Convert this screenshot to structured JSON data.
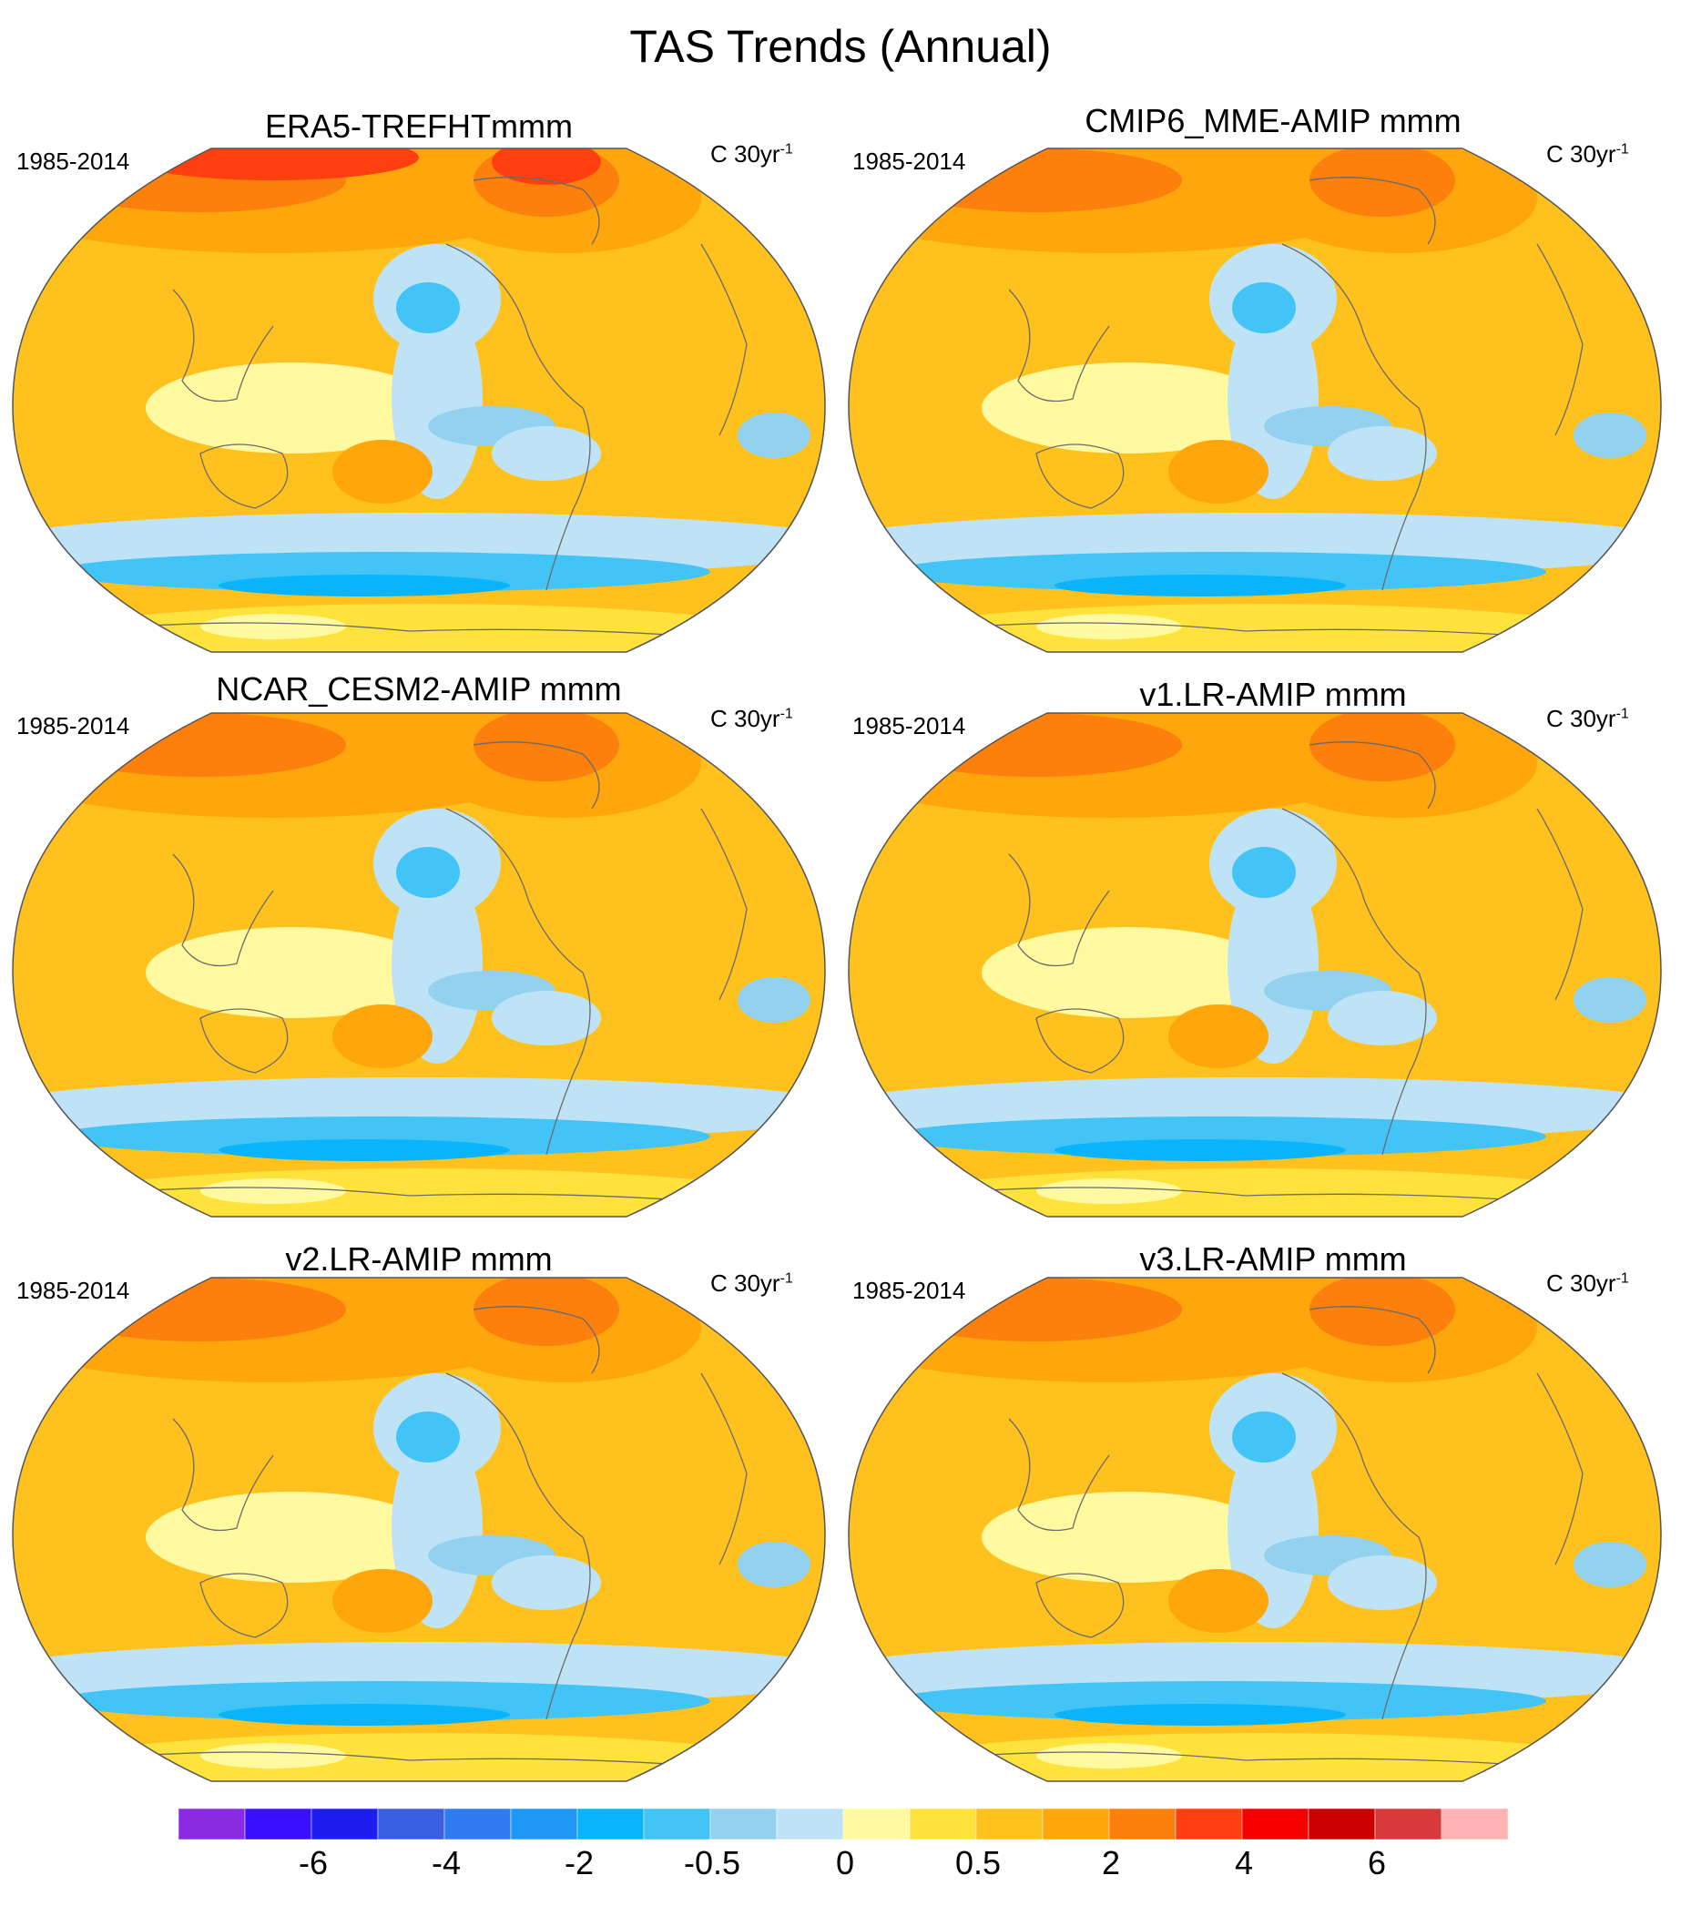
{
  "title": "TAS Trends (Annual)",
  "panels": [
    {
      "title": "ERA5-TREFHTmmm",
      "period": "1985-2014",
      "units": "C 30yr",
      "units_exp": "-1"
    },
    {
      "title": "CMIP6_MME-AMIP  mmm",
      "period": "1985-2014",
      "units": "C 30yr",
      "units_exp": "-1"
    },
    {
      "title": "NCAR_CESM2-AMIP  mmm",
      "period": "1985-2014",
      "units": "C 30yr",
      "units_exp": "-1"
    },
    {
      "title": "v1.LR-AMIP  mmm",
      "period": "1985-2014",
      "units": "C 30yr",
      "units_exp": "-1"
    },
    {
      "title": "v2.LR-AMIP  mmm",
      "period": "1985-2014",
      "units": "C 30yr",
      "units_exp": "-1"
    },
    {
      "title": "v3.LR-AMIP  mmm",
      "period": "1985-2014",
      "units": "C 30yr",
      "units_exp": "-1"
    }
  ],
  "colorbar": {
    "colors": [
      "#8a2be2",
      "#3a0fff",
      "#1e1ef0",
      "#3a5fe0",
      "#2f7cf0",
      "#1f97f5",
      "#09b4fb",
      "#43c4f7",
      "#93d2ef",
      "#bfe3f6",
      "#fff9a0",
      "#ffe23c",
      "#ffc11e",
      "#ffa60c",
      "#fd7f0c",
      "#ff3f0f",
      "#f80000",
      "#cc0000",
      "#d63a3a",
      "#ffb3b3"
    ],
    "labels": [
      "-6",
      "-4",
      "-2",
      "-0.5",
      "0",
      "0.5",
      "2",
      "4",
      "6"
    ]
  },
  "chart_data": {
    "type": "heatmap",
    "title": "TAS Trends (Annual)",
    "projection": "Robinson, Pacific-centered",
    "legend_placement": "bottom",
    "colorbar_ticks": [
      -6,
      -4,
      -2,
      -0.5,
      0,
      0.5,
      2,
      4,
      6
    ],
    "panels": [
      {
        "name": "ERA5-TREFHTmmm",
        "period": "1985-2014",
        "units": "C 30yr-1"
      },
      {
        "name": "CMIP6_MME-AMIP  mmm",
        "period": "1985-2014",
        "units": "C 30yr-1"
      },
      {
        "name": "NCAR_CESM2-AMIP  mmm",
        "period": "1985-2014",
        "units": "C 30yr-1"
      },
      {
        "name": "v1.LR-AMIP  mmm",
        "period": "1985-2014",
        "units": "C 30yr-1"
      },
      {
        "name": "v2.LR-AMIP  mmm",
        "period": "1985-2014",
        "units": "C 30yr-1"
      },
      {
        "name": "v3.LR-AMIP  mmm",
        "period": "1985-2014",
        "units": "C 30yr-1"
      }
    ]
  }
}
